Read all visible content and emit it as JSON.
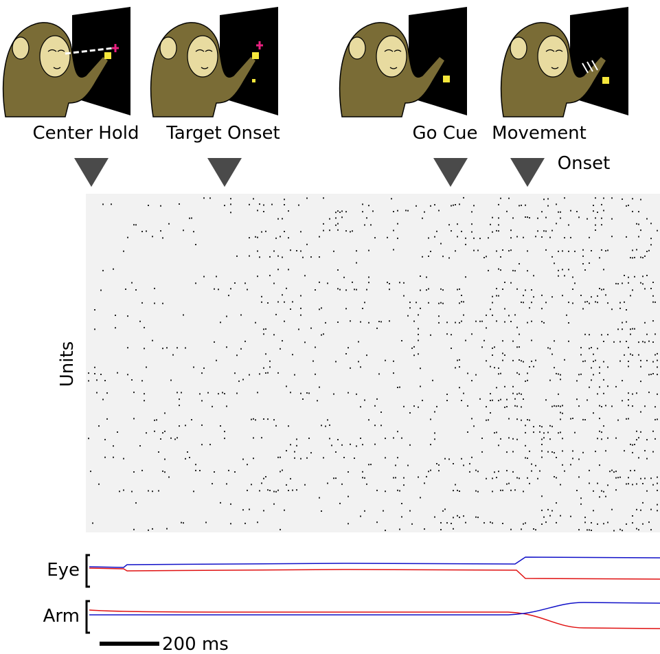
{
  "events": [
    {
      "label": "Center Hold"
    },
    {
      "label": "Target Onset"
    },
    {
      "label": "Go Cue"
    },
    {
      "lines": [
        "Movement",
        "Onset"
      ]
    }
  ],
  "raster": {
    "ylabel": "Units"
  },
  "traces": [
    {
      "label": "Eye"
    },
    {
      "label": "Arm"
    }
  ],
  "scalebar": {
    "label": "200 ms"
  }
}
